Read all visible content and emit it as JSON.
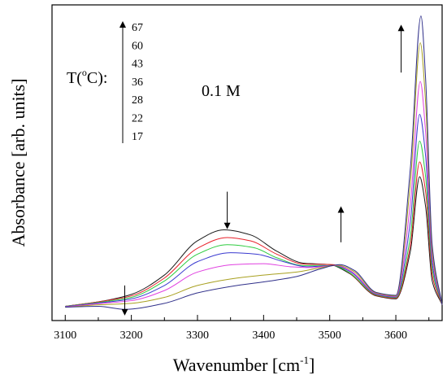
{
  "chart_data": {
    "type": "line",
    "title": "",
    "xlabel_main": "Wavenumber [cm",
    "xlabel_sup": "-1",
    "xlabel_close": "]",
    "ylabel": "Absorbance [arb. units]",
    "xlim": [
      3080,
      3670
    ],
    "ylim": [
      0,
      1
    ],
    "x_ticks": [
      3100,
      3200,
      3300,
      3400,
      3500,
      3600
    ],
    "y_ticks_shown": false,
    "concentration_label": "0.1 M",
    "temperature_legend_title_pre": "T(",
    "temperature_legend_title_sup": "o",
    "temperature_legend_title_post": "C):",
    "temperatures": [
      "67",
      "60",
      "43",
      "36",
      "28",
      "22",
      "17"
    ],
    "series": [
      {
        "temperature": "17",
        "color": "#1a1a1a",
        "pts": [
          [
            3100,
            0.015
          ],
          [
            3150,
            0.03
          ],
          [
            3200,
            0.055
          ],
          [
            3250,
            0.12
          ],
          [
            3300,
            0.235
          ],
          [
            3340,
            0.272
          ],
          [
            3380,
            0.255
          ],
          [
            3420,
            0.2
          ],
          [
            3460,
            0.16
          ],
          [
            3500,
            0.155
          ],
          [
            3530,
            0.125
          ],
          [
            3570,
            0.05
          ],
          [
            3600,
            0.04
          ],
          [
            3622,
            0.2
          ],
          [
            3636,
            0.45
          ],
          [
            3645,
            0.35
          ],
          [
            3655,
            0.1
          ],
          [
            3670,
            0.02
          ]
        ]
      },
      {
        "temperature": "22",
        "color": "#e8202a",
        "pts": [
          [
            3100,
            0.015
          ],
          [
            3150,
            0.03
          ],
          [
            3200,
            0.05
          ],
          [
            3250,
            0.11
          ],
          [
            3300,
            0.21
          ],
          [
            3345,
            0.246
          ],
          [
            3380,
            0.235
          ],
          [
            3420,
            0.19
          ],
          [
            3460,
            0.157
          ],
          [
            3505,
            0.155
          ],
          [
            3530,
            0.127
          ],
          [
            3570,
            0.052
          ],
          [
            3600,
            0.042
          ],
          [
            3622,
            0.22
          ],
          [
            3636,
            0.5
          ],
          [
            3645,
            0.4
          ],
          [
            3655,
            0.12
          ],
          [
            3670,
            0.02
          ]
        ]
      },
      {
        "temperature": "28",
        "color": "#2ecc40",
        "pts": [
          [
            3100,
            0.015
          ],
          [
            3150,
            0.028
          ],
          [
            3200,
            0.045
          ],
          [
            3250,
            0.1
          ],
          [
            3300,
            0.19
          ],
          [
            3345,
            0.222
          ],
          [
            3385,
            0.212
          ],
          [
            3420,
            0.178
          ],
          [
            3460,
            0.152
          ],
          [
            3505,
            0.152
          ],
          [
            3530,
            0.128
          ],
          [
            3570,
            0.054
          ],
          [
            3600,
            0.044
          ],
          [
            3622,
            0.25
          ],
          [
            3636,
            0.57
          ],
          [
            3645,
            0.45
          ],
          [
            3655,
            0.14
          ],
          [
            3670,
            0.02
          ]
        ]
      },
      {
        "temperature": "36",
        "color": "#3a3ad0",
        "pts": [
          [
            3100,
            0.014
          ],
          [
            3150,
            0.026
          ],
          [
            3200,
            0.04
          ],
          [
            3250,
            0.085
          ],
          [
            3300,
            0.165
          ],
          [
            3350,
            0.195
          ],
          [
            3390,
            0.19
          ],
          [
            3430,
            0.165
          ],
          [
            3465,
            0.148
          ],
          [
            3508,
            0.152
          ],
          [
            3532,
            0.13
          ],
          [
            3570,
            0.056
          ],
          [
            3600,
            0.046
          ],
          [
            3622,
            0.3
          ],
          [
            3636,
            0.66
          ],
          [
            3645,
            0.52
          ],
          [
            3655,
            0.16
          ],
          [
            3670,
            0.02
          ]
        ]
      },
      {
        "temperature": "43",
        "color": "#e040e0",
        "pts": [
          [
            3100,
            0.013
          ],
          [
            3150,
            0.024
          ],
          [
            3200,
            0.034
          ],
          [
            3250,
            0.068
          ],
          [
            3300,
            0.13
          ],
          [
            3355,
            0.155
          ],
          [
            3400,
            0.158
          ],
          [
            3440,
            0.148
          ],
          [
            3470,
            0.145
          ],
          [
            3510,
            0.152
          ],
          [
            3533,
            0.132
          ],
          [
            3570,
            0.058
          ],
          [
            3600,
            0.048
          ],
          [
            3622,
            0.36
          ],
          [
            3637,
            0.77
          ],
          [
            3645,
            0.6
          ],
          [
            3655,
            0.18
          ],
          [
            3670,
            0.02
          ]
        ]
      },
      {
        "temperature": "60",
        "color": "#a8a020",
        "pts": [
          [
            3100,
            0.012
          ],
          [
            3150,
            0.02
          ],
          [
            3200,
            0.025
          ],
          [
            3250,
            0.045
          ],
          [
            3300,
            0.085
          ],
          [
            3360,
            0.11
          ],
          [
            3410,
            0.122
          ],
          [
            3450,
            0.13
          ],
          [
            3480,
            0.142
          ],
          [
            3512,
            0.153
          ],
          [
            3535,
            0.134
          ],
          [
            3570,
            0.06
          ],
          [
            3600,
            0.05
          ],
          [
            3622,
            0.43
          ],
          [
            3637,
            0.9
          ],
          [
            3645,
            0.7
          ],
          [
            3655,
            0.2
          ],
          [
            3670,
            0.02
          ]
        ]
      },
      {
        "temperature": "67",
        "color": "#30308a",
        "pts": [
          [
            3100,
            0.012
          ],
          [
            3150,
            0.015
          ],
          [
            3190,
            0.005
          ],
          [
            3250,
            0.025
          ],
          [
            3300,
            0.06
          ],
          [
            3360,
            0.085
          ],
          [
            3410,
            0.1
          ],
          [
            3450,
            0.115
          ],
          [
            3485,
            0.14
          ],
          [
            3515,
            0.155
          ],
          [
            3537,
            0.136
          ],
          [
            3570,
            0.062
          ],
          [
            3600,
            0.052
          ],
          [
            3622,
            0.48
          ],
          [
            3638,
            0.99
          ],
          [
            3645,
            0.78
          ],
          [
            3655,
            0.22
          ],
          [
            3670,
            0.02
          ]
        ]
      }
    ],
    "arrows": [
      {
        "x": 3190,
        "y_from": 0.085,
        "y_to": -0.005,
        "dir": "down"
      },
      {
        "x": 3345,
        "y_from": 0.4,
        "y_to": 0.285,
        "dir": "down"
      },
      {
        "x": 3517,
        "y_from": 0.23,
        "y_to": 0.34,
        "dir": "up"
      },
      {
        "x": 3608,
        "y_from": 0.8,
        "y_to": 0.95,
        "dir": "up"
      }
    ]
  }
}
